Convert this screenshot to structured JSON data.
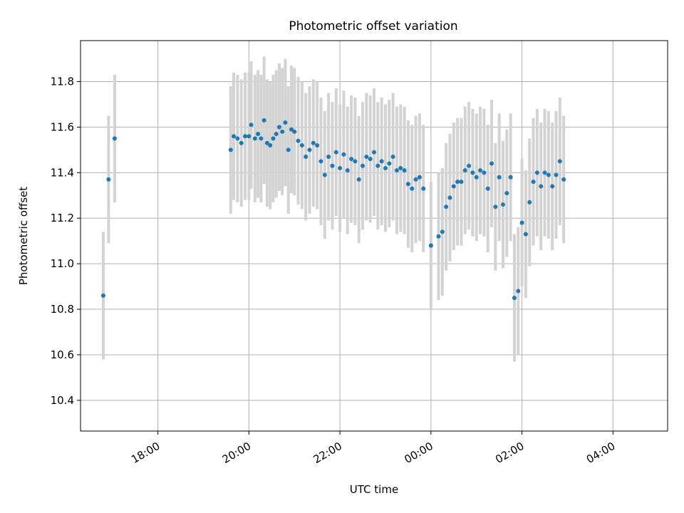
{
  "chart_data": {
    "type": "scatter",
    "title": "Photometric offset variation",
    "xlabel": "UTC time",
    "ylabel": "Photometric offset",
    "x_reference_date": "2000-01-01",
    "xlim": [
      "2000-01-01T16:18",
      "2000-01-02T05:12"
    ],
    "ylim": [
      10.265,
      11.98
    ],
    "x_ticks": [
      {
        "label": "18:00",
        "value": "2000-01-01T18:00"
      },
      {
        "label": "20:00",
        "value": "2000-01-01T20:00"
      },
      {
        "label": "22:00",
        "value": "2000-01-01T22:00"
      },
      {
        "label": "00:00",
        "value": "2000-01-02T00:00"
      },
      {
        "label": "02:00",
        "value": "2000-01-02T02:00"
      },
      {
        "label": "04:00",
        "value": "2000-01-02T04:00"
      }
    ],
    "y_ticks": [
      {
        "label": "10.4",
        "value": 10.4
      },
      {
        "label": "10.6",
        "value": 10.6
      },
      {
        "label": "10.8",
        "value": 10.8
      },
      {
        "label": "11.0",
        "value": 11.0
      },
      {
        "label": "11.2",
        "value": 11.2
      },
      {
        "label": "11.4",
        "value": 11.4
      },
      {
        "label": "11.6",
        "value": 11.6
      },
      {
        "label": "11.8",
        "value": 11.8
      }
    ],
    "grid": true,
    "colors": {
      "points": "#1f77b4",
      "error_bars": "#d3d3d3",
      "grid": "#b0b0b0"
    },
    "series": [
      {
        "error_bar": 0.28,
        "points": [
          [
            "2000-01-01T16:48",
            10.86
          ],
          [
            "2000-01-01T16:55",
            11.37
          ],
          [
            "2000-01-01T17:03",
            11.55
          ],
          [
            "2000-01-01T19:36",
            11.5
          ],
          [
            "2000-01-01T19:40",
            11.56
          ],
          [
            "2000-01-01T19:45",
            11.55
          ],
          [
            "2000-01-01T19:50",
            11.53
          ],
          [
            "2000-01-01T19:55",
            11.56
          ],
          [
            "2000-01-01T20:00",
            11.56
          ],
          [
            "2000-01-01T20:03",
            11.61
          ],
          [
            "2000-01-01T20:08",
            11.55
          ],
          [
            "2000-01-01T20:12",
            11.57
          ],
          [
            "2000-01-01T20:16",
            11.55
          ],
          [
            "2000-01-01T20:20",
            11.63
          ],
          [
            "2000-01-01T20:24",
            11.53
          ],
          [
            "2000-01-01T20:28",
            11.52
          ],
          [
            "2000-01-01T20:32",
            11.55
          ],
          [
            "2000-01-01T20:36",
            11.57
          ],
          [
            "2000-01-01T20:40",
            11.6
          ],
          [
            "2000-01-01T20:44",
            11.58
          ],
          [
            "2000-01-01T20:48",
            11.62
          ],
          [
            "2000-01-01T20:52",
            11.5
          ],
          [
            "2000-01-01T20:56",
            11.59
          ],
          [
            "2000-01-01T21:00",
            11.58
          ],
          [
            "2000-01-01T21:05",
            11.54
          ],
          [
            "2000-01-01T21:10",
            11.52
          ],
          [
            "2000-01-01T21:15",
            11.47
          ],
          [
            "2000-01-01T21:20",
            11.5
          ],
          [
            "2000-01-01T21:25",
            11.53
          ],
          [
            "2000-01-01T21:30",
            11.52
          ],
          [
            "2000-01-01T21:35",
            11.45
          ],
          [
            "2000-01-01T21:40",
            11.39
          ],
          [
            "2000-01-01T21:45",
            11.47
          ],
          [
            "2000-01-01T21:50",
            11.43
          ],
          [
            "2000-01-01T21:55",
            11.49
          ],
          [
            "2000-01-01T22:00",
            11.42
          ],
          [
            "2000-01-01T22:05",
            11.48
          ],
          [
            "2000-01-01T22:10",
            11.41
          ],
          [
            "2000-01-01T22:15",
            11.46
          ],
          [
            "2000-01-01T22:20",
            11.45
          ],
          [
            "2000-01-01T22:25",
            11.37
          ],
          [
            "2000-01-01T22:30",
            11.43
          ],
          [
            "2000-01-01T22:35",
            11.47
          ],
          [
            "2000-01-01T22:40",
            11.46
          ],
          [
            "2000-01-01T22:45",
            11.49
          ],
          [
            "2000-01-01T22:50",
            11.43
          ],
          [
            "2000-01-01T22:55",
            11.45
          ],
          [
            "2000-01-01T23:00",
            11.42
          ],
          [
            "2000-01-01T23:05",
            11.44
          ],
          [
            "2000-01-01T23:10",
            11.47
          ],
          [
            "2000-01-01T23:15",
            11.41
          ],
          [
            "2000-01-01T23:20",
            11.42
          ],
          [
            "2000-01-01T23:25",
            11.41
          ],
          [
            "2000-01-01T23:30",
            11.35
          ],
          [
            "2000-01-01T23:35",
            11.33
          ],
          [
            "2000-01-01T23:40",
            11.37
          ],
          [
            "2000-01-01T23:45",
            11.38
          ],
          [
            "2000-01-01T23:50",
            11.33
          ],
          [
            "2000-01-02T00:00",
            11.08
          ],
          [
            "2000-01-02T00:10",
            11.12
          ],
          [
            "2000-01-02T00:15",
            11.14
          ],
          [
            "2000-01-02T00:20",
            11.25
          ],
          [
            "2000-01-02T00:25",
            11.29
          ],
          [
            "2000-01-02T00:30",
            11.34
          ],
          [
            "2000-01-02T00:35",
            11.36
          ],
          [
            "2000-01-02T00:40",
            11.36
          ],
          [
            "2000-01-02T00:45",
            11.41
          ],
          [
            "2000-01-02T00:50",
            11.43
          ],
          [
            "2000-01-02T00:55",
            11.4
          ],
          [
            "2000-01-02T01:00",
            11.38
          ],
          [
            "2000-01-02T01:05",
            11.41
          ],
          [
            "2000-01-02T01:10",
            11.4
          ],
          [
            "2000-01-02T01:15",
            11.33
          ],
          [
            "2000-01-02T01:20",
            11.44
          ],
          [
            "2000-01-02T01:25",
            11.25
          ],
          [
            "2000-01-02T01:30",
            11.38
          ],
          [
            "2000-01-02T01:35",
            11.26
          ],
          [
            "2000-01-02T01:40",
            11.31
          ],
          [
            "2000-01-02T01:45",
            11.38
          ],
          [
            "2000-01-02T01:50",
            10.85
          ],
          [
            "2000-01-02T01:55",
            10.88
          ],
          [
            "2000-01-02T02:00",
            11.18
          ],
          [
            "2000-01-02T02:05",
            11.13
          ],
          [
            "2000-01-02T02:10",
            11.27
          ],
          [
            "2000-01-02T02:15",
            11.36
          ],
          [
            "2000-01-02T02:20",
            11.4
          ],
          [
            "2000-01-02T02:25",
            11.34
          ],
          [
            "2000-01-02T02:30",
            11.4
          ],
          [
            "2000-01-02T02:35",
            11.39
          ],
          [
            "2000-01-02T02:40",
            11.34
          ],
          [
            "2000-01-02T02:45",
            11.39
          ],
          [
            "2000-01-02T02:50",
            11.45
          ],
          [
            "2000-01-02T02:55",
            11.37
          ]
        ]
      }
    ]
  }
}
